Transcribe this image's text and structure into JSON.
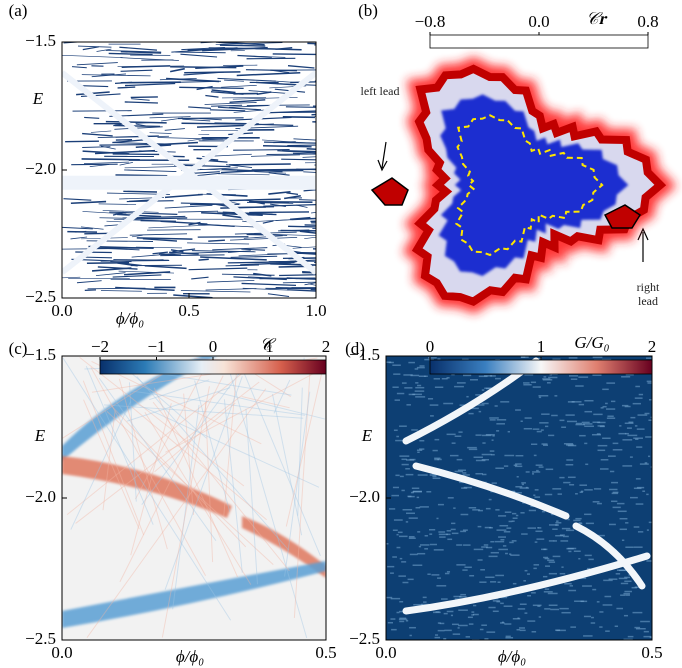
{
  "chart_data": [
    {
      "type": "heatmap",
      "panel": "(a)",
      "xlabel": "ϕ/ϕ₀",
      "ylabel": "E",
      "xlim": [
        0,
        1
      ],
      "ylim": [
        -2.5,
        -1.5
      ],
      "xticks": [
        {
          "value": 0,
          "label": "0.0"
        },
        {
          "value": 0.5,
          "label": "0.5"
        },
        {
          "value": 1,
          "label": "1.0"
        }
      ],
      "yticks": [
        {
          "value": -1.5,
          "label": "−1.5"
        },
        {
          "value": -2,
          "label": "−2.0"
        },
        {
          "value": -2.5,
          "label": "−2.5"
        }
      ]
    },
    {
      "type": "image",
      "panel": "(b)",
      "colorbar": {
        "label": "𝒞𝐫",
        "lim": [
          -0.8,
          0.8
        ],
        "ticks": [
          {
            "value": -0.8,
            "label": "−0.8"
          },
          {
            "value": 0,
            "label": "0.0"
          },
          {
            "value": 0.8,
            "label": "0.8"
          }
        ]
      },
      "annotations": [
        "left lead",
        "right lead"
      ]
    },
    {
      "type": "heatmap",
      "panel": "(c)",
      "xlabel": "ϕ/ϕ₀",
      "ylabel": "E",
      "xlim": [
        0,
        0.5
      ],
      "ylim": [
        -2.5,
        -1.5
      ],
      "xticks": [
        {
          "value": 0,
          "label": "0.0"
        },
        {
          "value": 0.5,
          "label": "0.5"
        }
      ],
      "yticks": [
        {
          "value": -1.5,
          "label": "−1.5"
        },
        {
          "value": -2,
          "label": "−2.0"
        },
        {
          "value": -2.5,
          "label": "−2.5"
        }
      ],
      "colorbar": {
        "label": "𝒞",
        "lim": [
          -2,
          2
        ],
        "ticks": [
          {
            "value": -2,
            "label": "−2"
          },
          {
            "value": -1,
            "label": "−1"
          },
          0,
          1,
          2
        ]
      }
    },
    {
      "type": "heatmap",
      "panel": "(d)",
      "xlabel": "ϕ/ϕ₀",
      "ylabel": "E",
      "xlim": [
        0,
        0.5
      ],
      "ylim": [
        -2.5,
        -1.5
      ],
      "xticks": [
        {
          "value": 0,
          "label": "0.0"
        },
        {
          "value": 0.5,
          "label": "0.5"
        }
      ],
      "yticks": [
        {
          "value": -1.5,
          "label": "−1.5"
        },
        {
          "value": -2,
          "label": "−2.0"
        },
        {
          "value": -2.5,
          "label": "−2.5"
        }
      ],
      "colorbar": {
        "label": "G/G₀",
        "lim": [
          0,
          2
        ],
        "ticks": [
          0,
          1,
          2
        ]
      }
    }
  ]
}
